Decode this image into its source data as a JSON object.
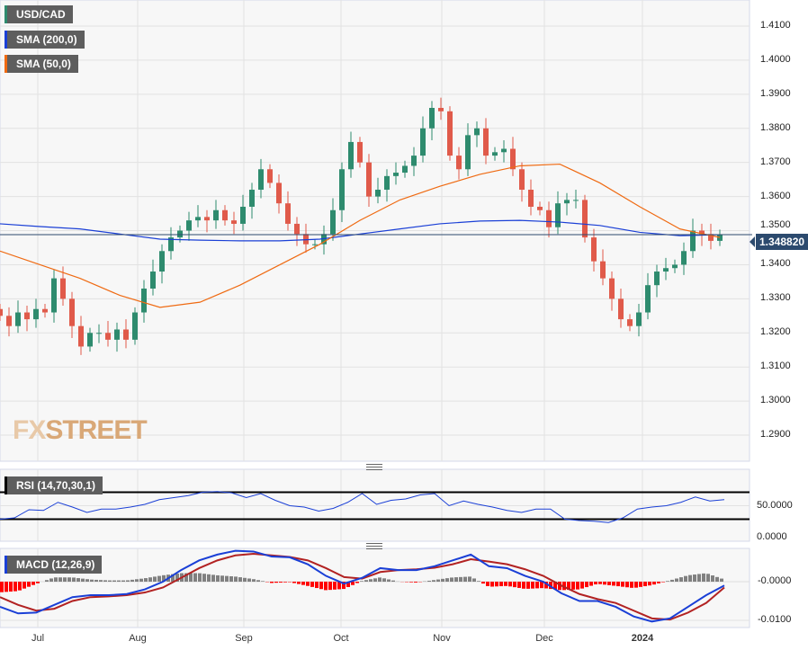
{
  "chart_data": [
    {
      "type": "candlestick",
      "title": "USD/CAD",
      "legend": [
        "USD/CAD",
        "SMA (200,0)",
        "SMA (50,0)"
      ],
      "y_ticks": [
        "1.4100",
        "1.4000",
        "1.3900",
        "1.3800",
        "1.3700",
        "1.3600",
        "1.3500",
        "1.3400",
        "1.3300",
        "1.3200",
        "1.3100",
        "1.3000",
        "1.2900"
      ],
      "ylim": [
        1.286,
        1.418
      ],
      "last_price": "1.348820",
      "closes": [
        1.325,
        1.322,
        1.326,
        1.324,
        1.327,
        1.326,
        1.336,
        1.33,
        1.322,
        1.316,
        1.32,
        1.32,
        1.318,
        1.321,
        1.318,
        1.326,
        1.333,
        1.338,
        1.344,
        1.348,
        1.35,
        1.353,
        1.354,
        1.353,
        1.356,
        1.353,
        1.352,
        1.357,
        1.362,
        1.368,
        1.364,
        1.358,
        1.352,
        1.349,
        1.346,
        1.346,
        1.349,
        1.356,
        1.368,
        1.376,
        1.37,
        1.36,
        1.362,
        1.366,
        1.367,
        1.369,
        1.372,
        1.38,
        1.386,
        1.385,
        1.372,
        1.368,
        1.378,
        1.38,
        1.372,
        1.373,
        1.374,
        1.368,
        1.362,
        1.357,
        1.356,
        1.351,
        1.358,
        1.359,
        1.359,
        1.348,
        1.341,
        1.336,
        1.33,
        1.324,
        1.322,
        1.326,
        1.334,
        1.338,
        1.339,
        1.34,
        1.344,
        1.35,
        1.349,
        1.347,
        1.3488
      ],
      "sma200": [
        1.352,
        1.3512,
        1.3505,
        1.349,
        1.3475,
        1.3472,
        1.347,
        1.347,
        1.3475,
        1.349,
        1.3505,
        1.352,
        1.3528,
        1.353,
        1.3525,
        1.3515,
        1.3495,
        1.3485,
        1.3488
      ],
      "sma50": [
        1.344,
        1.34,
        1.336,
        1.331,
        1.3275,
        1.329,
        1.334,
        1.34,
        1.346,
        1.353,
        1.359,
        1.363,
        1.3665,
        1.369,
        1.3695,
        1.364,
        1.357,
        1.3505,
        1.348
      ],
      "colors": {
        "up": "#2e8b6e",
        "down": "#e05a4a",
        "sma200": "#1a3fd6",
        "sma50": "#ef6a12"
      }
    },
    {
      "type": "line",
      "title": "RSI (14,70,30,1)",
      "y_ticks": [
        "50.0000",
        "0.0000"
      ],
      "levels": [
        70,
        30
      ],
      "values": [
        30,
        32,
        44,
        43,
        55,
        48,
        40,
        45,
        45,
        48,
        52,
        59,
        62,
        65,
        70,
        71,
        69,
        62,
        68,
        58,
        50,
        48,
        42,
        46,
        55,
        68,
        52,
        58,
        60,
        66,
        68,
        50,
        57,
        52,
        48,
        43,
        40,
        45,
        45,
        30,
        28,
        27,
        25,
        32,
        45,
        48,
        50,
        55,
        63,
        57,
        59
      ]
    },
    {
      "type": "line",
      "title": "MACD (12,26,9)",
      "y_ticks": [
        "-0.0000",
        "-0.0100"
      ],
      "macd": [
        -0.0065,
        -0.0082,
        -0.008,
        -0.006,
        -0.004,
        -0.0035,
        -0.0035,
        -0.0032,
        -0.002,
        0.0,
        0.003,
        0.0055,
        0.007,
        0.008,
        0.0078,
        0.0065,
        0.0063,
        0.0045,
        0.0015,
        -0.0005,
        0.001,
        0.0035,
        0.003,
        0.003,
        0.004,
        0.0055,
        0.007,
        0.004,
        0.0035,
        0.0015,
        0.0,
        -0.003,
        -0.005,
        -0.005,
        -0.0065,
        -0.009,
        -0.0103,
        -0.0095,
        -0.0065,
        -0.0035,
        -0.001
      ],
      "signal": [
        -0.004,
        -0.006,
        -0.0075,
        -0.007,
        -0.005,
        -0.004,
        -0.0038,
        -0.0035,
        -0.0028,
        -0.0015,
        0.001,
        0.0035,
        0.0055,
        0.0068,
        0.0072,
        0.0068,
        0.0064,
        0.0055,
        0.0035,
        0.0012,
        0.0008,
        0.0025,
        0.003,
        0.0032,
        0.0036,
        0.0045,
        0.0058,
        0.0052,
        0.0045,
        0.0032,
        0.0015,
        -0.001,
        -0.0032,
        -0.0045,
        -0.0055,
        -0.0075,
        -0.0095,
        -0.0098,
        -0.008,
        -0.0055,
        -0.0015
      ]
    }
  ],
  "x_ticks": [
    "Jul",
    "Aug",
    "Sep",
    "Oct",
    "Nov",
    "Dec",
    "2024"
  ],
  "watermark": "FXSTREET"
}
